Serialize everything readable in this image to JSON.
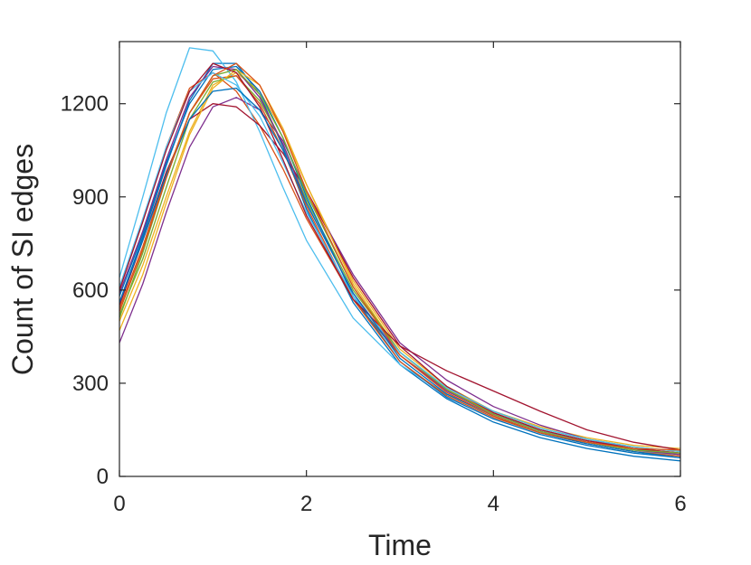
{
  "chart_data": {
    "type": "line",
    "title": "",
    "xlabel": "Time",
    "ylabel": "Count of SI edges",
    "xlim": [
      0,
      6
    ],
    "ylim": [
      0,
      1400
    ],
    "xticks": [
      0,
      2,
      4,
      6
    ],
    "yticks": [
      0,
      300,
      600,
      900,
      1200
    ],
    "grid": false,
    "legend": "none",
    "colors": [
      "#0072BD",
      "#D95319",
      "#EDB120",
      "#7E2F8E",
      "#77AC30",
      "#4DBEEE",
      "#A2142F"
    ],
    "series": [
      {
        "x": [
          0,
          0.25,
          0.5,
          0.75,
          1.0,
          1.25,
          1.5,
          1.75,
          2.0,
          2.5,
          3.0,
          3.5,
          4.0,
          4.5,
          5.0,
          5.5,
          6.0
        ],
        "y": [
          560,
          770,
          1000,
          1210,
          1330,
          1330,
          1230,
          1060,
          860,
          560,
          360,
          250,
          175,
          125,
          90,
          65,
          50
        ]
      },
      {
        "x": [
          0,
          0.25,
          0.5,
          0.75,
          1.0,
          1.25,
          1.5,
          1.75,
          2.0,
          2.5,
          3.0,
          3.5,
          4.0,
          4.5,
          5.0,
          5.5,
          6.0
        ],
        "y": [
          600,
          820,
          1060,
          1250,
          1300,
          1240,
          1130,
          990,
          830,
          570,
          390,
          280,
          205,
          150,
          115,
          90,
          75
        ]
      },
      {
        "x": [
          0,
          0.25,
          0.5,
          0.75,
          1.0,
          1.25,
          1.5,
          1.75,
          2.0,
          2.5,
          3.0,
          3.5,
          4.0,
          4.5,
          5.0,
          5.5,
          6.0
        ],
        "y": [
          500,
          680,
          900,
          1110,
          1260,
          1300,
          1240,
          1110,
          940,
          630,
          410,
          290,
          210,
          160,
          125,
          100,
          90
        ]
      },
      {
        "x": [
          0,
          0.25,
          0.5,
          0.75,
          1.0,
          1.25,
          1.5,
          1.75,
          2.0,
          2.5,
          3.0,
          3.5,
          4.0,
          4.5,
          5.0,
          5.5,
          6.0
        ],
        "y": [
          430,
          620,
          850,
          1060,
          1190,
          1220,
          1180,
          1080,
          920,
          650,
          430,
          310,
          225,
          165,
          120,
          90,
          70
        ]
      },
      {
        "x": [
          0,
          0.25,
          0.5,
          0.75,
          1.0,
          1.25,
          1.5,
          1.75,
          2.0,
          2.5,
          3.0,
          3.5,
          4.0,
          4.5,
          5.0,
          5.5,
          6.0
        ],
        "y": [
          520,
          700,
          930,
          1150,
          1270,
          1290,
          1210,
          1070,
          890,
          600,
          400,
          285,
          210,
          155,
          120,
          95,
          80
        ]
      },
      {
        "x": [
          0,
          0.25,
          0.5,
          0.75,
          1.0,
          1.25,
          1.5,
          1.75,
          2.0,
          2.5,
          3.0,
          3.5,
          4.0,
          4.5,
          5.0,
          5.5,
          6.0
        ],
        "y": [
          640,
          900,
          1170,
          1380,
          1370,
          1270,
          1110,
          930,
          760,
          510,
          360,
          265,
          200,
          150,
          110,
          85,
          65
        ]
      },
      {
        "x": [
          0,
          0.25,
          0.5,
          0.75,
          1.0,
          1.25,
          1.5,
          1.75,
          2.0,
          2.5,
          3.0,
          3.5,
          4.0,
          4.5,
          5.0,
          5.5,
          6.0
        ],
        "y": [
          550,
          760,
          980,
          1150,
          1200,
          1190,
          1130,
          1040,
          920,
          640,
          420,
          290,
          205,
          150,
          115,
          90,
          75
        ]
      },
      {
        "x": [
          0,
          0.25,
          0.5,
          0.75,
          1.0,
          1.25,
          1.5,
          1.75,
          2.0,
          2.5,
          3.0,
          3.5,
          4.0,
          4.5,
          5.0,
          5.5,
          6.0
        ],
        "y": [
          580,
          780,
          1010,
          1200,
          1310,
          1320,
          1240,
          1090,
          900,
          580,
          370,
          255,
          185,
          135,
          100,
          75,
          60
        ]
      },
      {
        "x": [
          0,
          0.25,
          0.5,
          0.75,
          1.0,
          1.25,
          1.5,
          1.75,
          2.0,
          2.5,
          3.0,
          3.5,
          4.0,
          4.5,
          5.0,
          5.5,
          6.0
        ],
        "y": [
          540,
          740,
          970,
          1170,
          1280,
          1290,
          1200,
          1050,
          870,
          570,
          370,
          260,
          190,
          140,
          105,
          80,
          65
        ]
      },
      {
        "x": [
          0,
          0.25,
          0.5,
          0.75,
          1.0,
          1.25,
          1.5,
          1.75,
          2.0,
          2.5,
          3.0,
          3.5,
          4.0,
          4.5,
          5.0,
          5.5,
          6.0
        ],
        "y": [
          470,
          650,
          880,
          1100,
          1250,
          1310,
          1260,
          1120,
          940,
          620,
          400,
          280,
          200,
          145,
          110,
          85,
          70
        ]
      },
      {
        "x": [
          0,
          0.25,
          0.5,
          0.75,
          1.0,
          1.25,
          1.5,
          1.75,
          2.0,
          2.5,
          3.0,
          3.5,
          4.0,
          4.5,
          5.0,
          5.5,
          6.0
        ],
        "y": [
          590,
          790,
          1020,
          1220,
          1320,
          1310,
          1220,
          1070,
          880,
          590,
          390,
          275,
          200,
          145,
          110,
          85,
          70
        ]
      },
      {
        "x": [
          0,
          0.25,
          0.5,
          0.75,
          1.0,
          1.25,
          1.5,
          1.75,
          2.0,
          2.5,
          3.0,
          3.5,
          4.0,
          4.5,
          5.0,
          5.5,
          6.0
        ],
        "y": [
          510,
          720,
          960,
          1170,
          1290,
          1310,
          1230,
          1090,
          910,
          610,
          400,
          280,
          200,
          145,
          110,
          85,
          75
        ]
      },
      {
        "x": [
          0,
          0.25,
          0.5,
          0.75,
          1.0,
          1.25,
          1.5,
          1.75,
          2.0,
          2.5,
          3.0,
          3.5,
          4.0,
          4.5,
          5.0,
          5.5,
          6.0
        ],
        "y": [
          610,
          830,
          1060,
          1240,
          1300,
          1260,
          1160,
          1010,
          850,
          580,
          400,
          285,
          210,
          155,
          120,
          95,
          80
        ]
      },
      {
        "x": [
          0,
          0.25,
          0.5,
          0.75,
          1.0,
          1.25,
          1.5,
          1.75,
          2.0,
          2.5,
          3.0,
          3.5,
          4.0,
          4.5,
          5.0,
          5.5,
          6.0
        ],
        "y": [
          600,
          820,
          1050,
          1240,
          1330,
          1300,
          1190,
          1020,
          840,
          570,
          420,
          340,
          275,
          210,
          150,
          110,
          85
        ]
      },
      {
        "x": [
          0,
          0.25,
          0.5,
          0.75,
          1.0,
          1.25,
          1.5,
          1.75,
          2.0,
          2.5,
          3.0,
          3.5,
          4.0,
          4.5,
          5.0,
          5.5,
          6.0
        ],
        "y": [
          560,
          760,
          970,
          1150,
          1240,
          1250,
          1180,
          1050,
          880,
          590,
          380,
          265,
          195,
          140,
          105,
          80,
          60
        ]
      },
      {
        "x": [
          0,
          0.25,
          0.5,
          0.75,
          1.0,
          1.25,
          1.5,
          1.75,
          2.0,
          2.5,
          3.0,
          3.5,
          4.0,
          4.5,
          5.0,
          5.5,
          6.0
        ],
        "y": [
          530,
          730,
          960,
          1170,
          1290,
          1330,
          1260,
          1110,
          920,
          610,
          390,
          270,
          195,
          140,
          110,
          90,
          85
        ]
      }
    ]
  }
}
